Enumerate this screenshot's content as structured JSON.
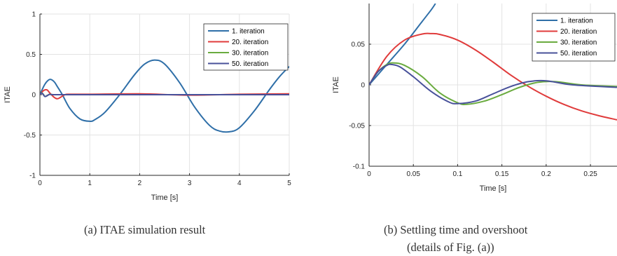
{
  "chart_data": [
    {
      "type": "line",
      "xlabel": "Time [s]",
      "ylabel": "ITAE",
      "xlim": [
        0,
        5
      ],
      "ylim": [
        -1,
        1
      ],
      "xticks": [
        "0",
        "1",
        "2",
        "3",
        "4",
        "5"
      ],
      "yticks": [
        "1",
        "0.5",
        "0",
        "-0.5",
        "-1"
      ],
      "grid": true,
      "legend_position": "top-right",
      "series": [
        {
          "name": "1. iteration",
          "color": "#2f6fa8",
          "x": [
            0,
            0.05,
            0.1,
            0.15,
            0.2,
            0.25,
            0.3,
            0.35,
            0.45,
            0.6,
            0.8,
            1.0,
            1.1,
            1.3,
            1.6,
            1.9,
            2.1,
            2.3,
            2.5,
            2.8,
            3.1,
            3.4,
            3.6,
            3.8,
            4.0,
            4.3,
            4.6,
            4.8,
            5.0
          ],
          "y": [
            0,
            0.07,
            0.13,
            0.17,
            0.19,
            0.18,
            0.15,
            0.1,
            0.0,
            -0.17,
            -0.3,
            -0.33,
            -0.31,
            -0.22,
            0.0,
            0.25,
            0.38,
            0.43,
            0.38,
            0.15,
            -0.15,
            -0.38,
            -0.45,
            -0.46,
            -0.41,
            -0.2,
            0.06,
            0.22,
            0.35
          ]
        },
        {
          "name": "20. iteration",
          "color": "#e03b3b",
          "x": [
            0,
            0.07,
            0.14,
            0.2,
            0.28,
            0.35,
            0.42,
            0.5,
            0.6,
            1.0,
            2.0,
            3.0,
            4.0,
            5.0
          ],
          "y": [
            0,
            0.05,
            0.06,
            0.02,
            -0.03,
            -0.05,
            -0.03,
            0.0,
            0.005,
            0.005,
            0.01,
            -0.005,
            0.005,
            0.01
          ]
        },
        {
          "name": "30. iteration",
          "color": "#6aab3f",
          "x": [
            0,
            0.03,
            0.06,
            0.1,
            0.15,
            0.2,
            0.3,
            1.0,
            2.0,
            3.0,
            4.0,
            5.0
          ],
          "y": [
            0,
            0.025,
            0.01,
            -0.022,
            -0.01,
            0.005,
            0.0,
            0.0,
            0.0,
            0.0,
            0.0,
            0.0
          ]
        },
        {
          "name": "50. iteration",
          "color": "#48519a",
          "x": [
            0,
            0.03,
            0.06,
            0.1,
            0.15,
            0.2,
            0.3,
            1.0,
            2.0,
            3.0,
            4.0,
            5.0
          ],
          "y": [
            0,
            0.022,
            0.008,
            -0.023,
            -0.01,
            0.004,
            0.0,
            0.0,
            0.0,
            0.0,
            0.0,
            0.0
          ]
        }
      ]
    },
    {
      "type": "line",
      "xlabel": "Time [s]",
      "ylabel": "ITAE",
      "xlim": [
        0,
        0.28
      ],
      "ylim": [
        -0.1,
        0.1
      ],
      "xticks": [
        "0",
        "0.05",
        "0.1",
        "0.15",
        "0.2",
        "0.25"
      ],
      "yticks": [
        "0.05",
        "0",
        "-0.05",
        "-0.1"
      ],
      "grid": true,
      "legend_position": "top-right",
      "series": [
        {
          "name": "1. iteration",
          "color": "#2f6fa8",
          "x": [
            0,
            0.02,
            0.04,
            0.06,
            0.07,
            0.075
          ],
          "y": [
            0,
            0.025,
            0.05,
            0.078,
            0.092,
            0.1
          ]
        },
        {
          "name": "20. iteration",
          "color": "#e03b3b",
          "x": [
            0,
            0.02,
            0.04,
            0.06,
            0.07,
            0.08,
            0.1,
            0.12,
            0.14,
            0.16,
            0.18,
            0.2,
            0.22,
            0.24,
            0.26,
            0.28
          ],
          "y": [
            0,
            0.035,
            0.055,
            0.0625,
            0.063,
            0.062,
            0.055,
            0.043,
            0.028,
            0.012,
            -0.002,
            -0.014,
            -0.024,
            -0.032,
            -0.038,
            -0.043
          ]
        },
        {
          "name": "30. iteration",
          "color": "#6aab3f",
          "x": [
            0,
            0.01,
            0.02,
            0.028,
            0.04,
            0.06,
            0.08,
            0.1,
            0.11,
            0.13,
            0.15,
            0.17,
            0.19,
            0.21,
            0.24,
            0.28
          ],
          "y": [
            0,
            0.016,
            0.025,
            0.027,
            0.024,
            0.01,
            -0.01,
            -0.022,
            -0.024,
            -0.02,
            -0.012,
            -0.003,
            0.003,
            0.004,
            0.0,
            -0.002
          ]
        },
        {
          "name": "50. iteration",
          "color": "#48519a",
          "x": [
            0,
            0.01,
            0.02,
            0.026,
            0.035,
            0.05,
            0.07,
            0.09,
            0.1,
            0.12,
            0.14,
            0.16,
            0.18,
            0.2,
            0.23,
            0.28
          ],
          "y": [
            0,
            0.016,
            0.024,
            0.025,
            0.022,
            0.01,
            -0.008,
            -0.021,
            -0.023,
            -0.02,
            -0.011,
            -0.002,
            0.004,
            0.005,
            0.0,
            -0.003
          ]
        }
      ]
    }
  ],
  "captions": {
    "a": "(a)   ITAE simulation result",
    "b_line1": "(b)   Settling time and overshoot",
    "b_line2": "(details of Fig. (a))"
  }
}
